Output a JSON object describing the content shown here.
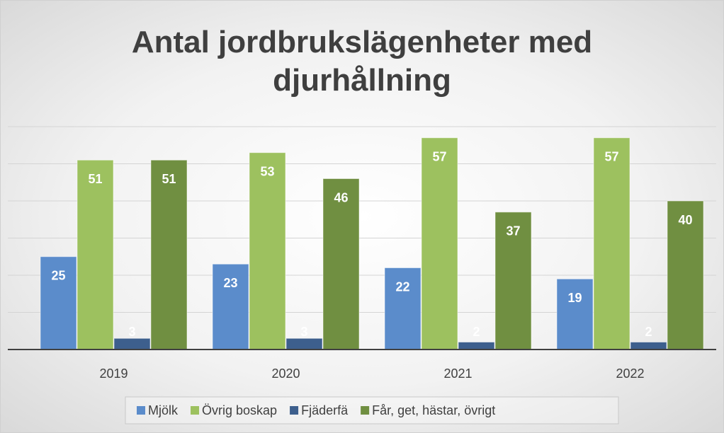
{
  "chart_data": {
    "type": "bar",
    "title": "Antal jordbrukslägenheter med djurhållning",
    "categories": [
      "2019",
      "2020",
      "2021",
      "2022"
    ],
    "series": [
      {
        "name": "Mjölk",
        "color": "#5b8ccb",
        "values": [
          25,
          23,
          22,
          19
        ]
      },
      {
        "name": "Övrig boskap",
        "color": "#9dc15f",
        "values": [
          51,
          53,
          57,
          57
        ]
      },
      {
        "name": "Fjäderfä",
        "color": "#3d5f8d",
        "values": [
          3,
          3,
          2,
          2
        ]
      },
      {
        "name": "Får, get, hästar, övrigt",
        "color": "#708f41",
        "values": [
          51,
          46,
          37,
          40
        ]
      }
    ],
    "ylim": [
      0,
      60
    ],
    "yticks": [
      0,
      10,
      20,
      30,
      40,
      50,
      60
    ],
    "grid": true,
    "legend": "bottom"
  }
}
